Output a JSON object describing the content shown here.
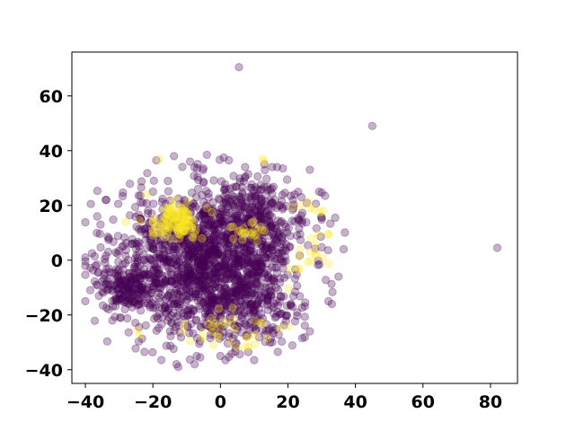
{
  "chart_data": {
    "type": "scatter",
    "title": "",
    "xlabel": "",
    "ylabel": "",
    "xlim": [
      -44,
      88
    ],
    "ylim": [
      -45,
      76
    ],
    "grid": false,
    "legend": "none",
    "x_ticks": [
      -40,
      -20,
      0,
      20,
      40,
      60,
      80
    ],
    "y_ticks": [
      -40,
      -20,
      0,
      20,
      40,
      60
    ],
    "x_tick_labels": [
      "−40",
      "−20",
      "0",
      "20",
      "40",
      "60",
      "80"
    ],
    "y_tick_labels": [
      "−40",
      "−20",
      "0",
      "20",
      "40",
      "60"
    ],
    "marker_alpha": 0.3,
    "colors": {
      "class_0": "#440154",
      "class_1": "#fde725"
    },
    "series": [
      {
        "class": 0,
        "color": "#440154",
        "clusters": [
          {
            "cx": -5,
            "cy": 0,
            "sx": 13,
            "sy": 13,
            "n": 1300,
            "xr": [
              -40,
              38
            ],
            "yr": [
              -38,
              38
            ]
          },
          {
            "cx": 10,
            "cy": 12,
            "sx": 8,
            "sy": 9,
            "n": 350,
            "xr": [
              -5,
              30
            ],
            "yr": [
              -10,
              34
            ]
          },
          {
            "cx": -28,
            "cy": -10,
            "sx": 5,
            "sy": 5,
            "n": 150,
            "xr": [
              -40,
              -15
            ],
            "yr": [
              -22,
              4
            ]
          },
          {
            "cx": 5,
            "cy": -20,
            "sx": 10,
            "sy": 7,
            "n": 200,
            "xr": [
              -20,
              25
            ],
            "yr": [
              -38,
              -5
            ]
          }
        ],
        "fixed": [
          [
            -40,
            1
          ],
          [
            -38,
            2.5
          ],
          [
            -37,
            -2
          ],
          [
            -36.5,
            16
          ],
          [
            -35.5,
            13
          ],
          [
            -36,
            -13
          ],
          [
            -35,
            -11.5
          ],
          [
            -34,
            22
          ],
          [
            -33,
            8
          ],
          [
            -32,
            -22
          ],
          [
            -23,
            21
          ],
          [
            -20,
            25
          ],
          [
            -22.5,
            -33.5
          ],
          [
            -13,
            -38
          ],
          [
            -12.5,
            -39
          ],
          [
            -7,
            -35
          ],
          [
            -6,
            -35.5
          ],
          [
            1.5,
            -36.5
          ],
          [
            4.5,
            -30.5
          ],
          [
            10,
            -36.5
          ],
          [
            17,
            -33.5
          ],
          [
            -9,
            36
          ],
          [
            -4,
            38.5
          ],
          [
            1,
            37.5
          ],
          [
            2.5,
            36.5
          ],
          [
            13,
            35
          ],
          [
            18.5,
            33.5
          ],
          [
            26.5,
            33
          ],
          [
            31,
            23.5
          ],
          [
            34,
            15.5
          ],
          [
            36.5,
            4
          ],
          [
            35,
            -6
          ],
          [
            33,
            -16
          ],
          [
            32,
            -15
          ],
          [
            26.5,
            -26
          ],
          [
            -27,
            -16
          ],
          [
            -25,
            4
          ],
          [
            5.5,
            70.5
          ],
          [
            45,
            49
          ],
          [
            82,
            4.5
          ]
        ]
      },
      {
        "class": 1,
        "color": "#fde725",
        "clusters": [
          {
            "cx": -13,
            "cy": 14,
            "sx": 3.5,
            "sy": 3,
            "n": 110,
            "xr": [
              -20,
              -5
            ],
            "yr": [
              8,
              22
            ]
          },
          {
            "cx": 7,
            "cy": 10,
            "sx": 3,
            "sy": 2.5,
            "n": 22,
            "xr": [
              3,
              15
            ],
            "yr": [
              7,
              14
            ]
          },
          {
            "cx": 5,
            "cy": -25,
            "sx": 8,
            "sy": 4,
            "n": 30,
            "xr": [
              -12,
              20
            ],
            "yr": [
              -32,
              -15
            ]
          },
          {
            "cx": 25,
            "cy": 5,
            "sx": 5,
            "sy": 10,
            "n": 20,
            "xr": [
              18,
              32
            ],
            "yr": [
              -20,
              22
            ]
          }
        ],
        "fixed": [
          [
            -18,
            37
          ],
          [
            -24,
            14.5
          ],
          [
            -28,
            14
          ],
          [
            -24.5,
            -25.5
          ],
          [
            -24,
            -27.5
          ],
          [
            -22,
            24
          ],
          [
            -4,
            19
          ],
          [
            -2.5,
            17.5
          ],
          [
            12.5,
            37
          ],
          [
            13,
            36
          ],
          [
            24,
            20
          ],
          [
            26.5,
            19
          ],
          [
            29.5,
            17.5
          ],
          [
            27,
            8
          ],
          [
            28.5,
            2
          ],
          [
            -11,
            -26
          ],
          [
            -9,
            -29.5
          ],
          [
            -5.5,
            -29
          ],
          [
            17.5,
            -25
          ]
        ]
      }
    ]
  }
}
